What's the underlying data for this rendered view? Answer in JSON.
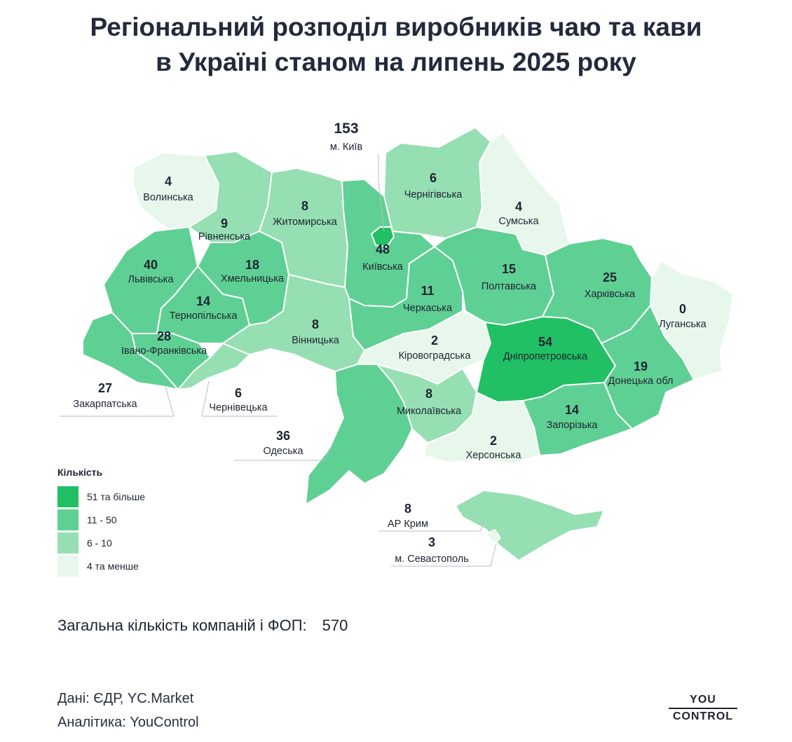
{
  "title": {
    "line1": "Регіональний розподіл виробників чаю та кави",
    "line2": "в Україні станом на липень 2025 року"
  },
  "colors": {
    "tier1": "#21c064",
    "tier2": "#5fd093",
    "tier3": "#95dfb2",
    "tier4": "#e7f7ec",
    "border": "#ffffff",
    "leader": "#b8bcc4"
  },
  "regions": [
    {
      "key": "volyn",
      "name": "Волинська",
      "value": 4,
      "tier": 4
    },
    {
      "key": "rivne",
      "name": "Рівненська",
      "value": 9,
      "tier": 3
    },
    {
      "key": "zhytomyr",
      "name": "Житомирська",
      "value": 8,
      "tier": 3
    },
    {
      "key": "kyivobl",
      "name": "Київська",
      "value": 48,
      "tier": 2
    },
    {
      "key": "kyivcity",
      "name": "м. Київ",
      "value": 153,
      "tier": 1
    },
    {
      "key": "chernihiv",
      "name": "Чернігівська",
      "value": 6,
      "tier": 3
    },
    {
      "key": "sumy",
      "name": "Сумська",
      "value": 4,
      "tier": 4
    },
    {
      "key": "lviv",
      "name": "Львівська",
      "value": 40,
      "tier": 2
    },
    {
      "key": "khmelnytskyi",
      "name": "Хмельницька",
      "value": 18,
      "tier": 2
    },
    {
      "key": "ternopil",
      "name": "Тернопільська",
      "value": 14,
      "tier": 2
    },
    {
      "key": "ivanofrankivsk",
      "name": "Івано-Франківська",
      "value": 28,
      "tier": 2
    },
    {
      "key": "zakarpattia",
      "name": "Закарпатська",
      "value": 27,
      "tier": 2
    },
    {
      "key": "chernivtsi",
      "name": "Чернівецька",
      "value": 6,
      "tier": 3
    },
    {
      "key": "vinnytsia",
      "name": "Вінницька",
      "value": 8,
      "tier": 3
    },
    {
      "key": "cherkasy",
      "name": "Черкаська",
      "value": 11,
      "tier": 2
    },
    {
      "key": "poltava",
      "name": "Полтавська",
      "value": 15,
      "tier": 2
    },
    {
      "key": "kharkiv",
      "name": "Харківська",
      "value": 25,
      "tier": 2
    },
    {
      "key": "luhansk",
      "name": "Луганська",
      "value": 0,
      "tier": 4
    },
    {
      "key": "kirovohrad",
      "name": "Кіровоградська",
      "value": 2,
      "tier": 4
    },
    {
      "key": "dnipro",
      "name": "Дніпропетровська",
      "value": 54,
      "tier": 1
    },
    {
      "key": "donetsk",
      "name": "Донецька обл",
      "value": 19,
      "tier": 2
    },
    {
      "key": "mykolaiv",
      "name": "Миколаївська",
      "value": 8,
      "tier": 3
    },
    {
      "key": "odesa",
      "name": "Одеська",
      "value": 36,
      "tier": 2
    },
    {
      "key": "kherson",
      "name": "Херсонська",
      "value": 2,
      "tier": 4
    },
    {
      "key": "zaporizhzhia",
      "name": "Запорізька",
      "value": 14,
      "tier": 2
    },
    {
      "key": "crimea",
      "name": "АР Крим",
      "value": 8,
      "tier": 3
    },
    {
      "key": "sevastopol",
      "name": "м. Севастополь",
      "value": 3,
      "tier": 4
    }
  ],
  "legend": {
    "title": "Кількість",
    "items": [
      {
        "label": "51 та більше",
        "tier": 1
      },
      {
        "label": "11 - 50",
        "tier": 2
      },
      {
        "label": "6 - 10",
        "tier": 3
      },
      {
        "label": "4 та менше",
        "tier": 4
      }
    ]
  },
  "total": {
    "label": "Загальна кількість компаній і ФОП:",
    "value": "570"
  },
  "sources": {
    "data": "Дані: ЄДР, YC.Market",
    "analytics": "Аналітика: YouControl"
  },
  "logo": {
    "line1": "YOU",
    "line2": "CONTROL"
  }
}
